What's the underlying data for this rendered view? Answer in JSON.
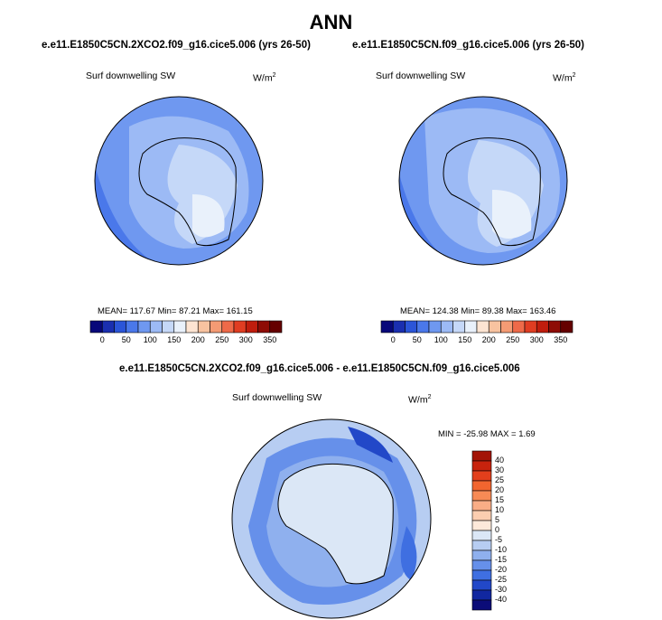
{
  "page": {
    "title": "ANN",
    "left_case": "e.e11.E1850C5CN.2XCO2.f09_g16.cice5.006 (yrs 26-50)",
    "right_case": "e.e11.E1850C5CN.f09_g16.cice5.006 (yrs 26-50)",
    "diff_title": "e.e11.E1850C5CN.2XCO2.f09_g16.cice5.006 - e.e11.E1850C5CN.f09_g16.cice5.006"
  },
  "panels": {
    "left": {
      "var_label": "Surf downwelling SW",
      "units": "W/m",
      "units_sup": "2",
      "stats": "MEAN= 117.67  Min=  87.21  Max= 161.15"
    },
    "right": {
      "var_label": "Surf downwelling SW",
      "units": "W/m",
      "units_sup": "2",
      "stats": "MEAN= 124.38  Min=  89.38  Max= 163.46"
    },
    "diff": {
      "var_label": "Surf downwelling SW",
      "units": "W/m",
      "units_sup": "2",
      "stats": "MIN = -25.98 MAX =   1.69"
    }
  },
  "chart_data": [
    {
      "type": "heatmap",
      "title": "e.e11.E1850C5CN.2XCO2.f09_g16.cice5.006 (yrs 26-50)",
      "variable": "Surf downwelling SW",
      "units": "W/m2",
      "projection": "south polar stereographic",
      "mean": 117.67,
      "min": 87.21,
      "max": 161.15,
      "colorbar_levels": [
        0,
        25,
        50,
        75,
        100,
        125,
        150,
        175,
        200,
        225,
        250,
        275,
        300,
        325,
        350
      ],
      "colorbar_tick_labels": [
        "0",
        "50",
        "100",
        "150",
        "200",
        "250",
        "300",
        "350"
      ],
      "colorbar_colors": [
        "#08087a",
        "#1a2fb0",
        "#2b55d8",
        "#4a78ea",
        "#6f98f0",
        "#9cbaf5",
        "#c5d8f8",
        "#e9f1fb",
        "#fde4d2",
        "#f8c3a0",
        "#f49b74",
        "#ee6a49",
        "#e03d22",
        "#c01d0d",
        "#8e0c05",
        "#650000"
      ]
    },
    {
      "type": "heatmap",
      "title": "e.e11.E1850C5CN.f09_g16.cice5.006 (yrs 26-50)",
      "variable": "Surf downwelling SW",
      "units": "W/m2",
      "projection": "south polar stereographic",
      "mean": 124.38,
      "min": 89.38,
      "max": 163.46,
      "colorbar_levels": [
        0,
        25,
        50,
        75,
        100,
        125,
        150,
        175,
        200,
        225,
        250,
        275,
        300,
        325,
        350
      ],
      "colorbar_tick_labels": [
        "0",
        "50",
        "100",
        "150",
        "200",
        "250",
        "300",
        "350"
      ],
      "colorbar_colors": [
        "#08087a",
        "#1a2fb0",
        "#2b55d8",
        "#4a78ea",
        "#6f98f0",
        "#9cbaf5",
        "#c5d8f8",
        "#e9f1fb",
        "#fde4d2",
        "#f8c3a0",
        "#f49b74",
        "#ee6a49",
        "#e03d22",
        "#c01d0d",
        "#8e0c05",
        "#650000"
      ]
    },
    {
      "type": "heatmap",
      "title": "e.e11.E1850C5CN.2XCO2.f09_g16.cice5.006 - e.e11.E1850C5CN.f09_g16.cice5.006",
      "variable": "Surf downwelling SW",
      "units": "W/m2",
      "projection": "south polar stereographic",
      "min": -25.98,
      "max": 1.69,
      "colorbar_orientation": "vertical",
      "colorbar_tick_labels": [
        "40",
        "30",
        "25",
        "20",
        "15",
        "10",
        "5",
        "0",
        "-5",
        "-10",
        "-15",
        "-20",
        "-25",
        "-30",
        "-40"
      ],
      "colorbar_colors": [
        "#a31406",
        "#c8230d",
        "#e23f1c",
        "#f2652f",
        "#f78a55",
        "#f9ad86",
        "#fbcdb0",
        "#fde9da",
        "#dbe7f6",
        "#b7cdf2",
        "#8fb0ee",
        "#6690ea",
        "#3f6fe1",
        "#2248c8",
        "#1127a0",
        "#0b0c78"
      ]
    }
  ]
}
